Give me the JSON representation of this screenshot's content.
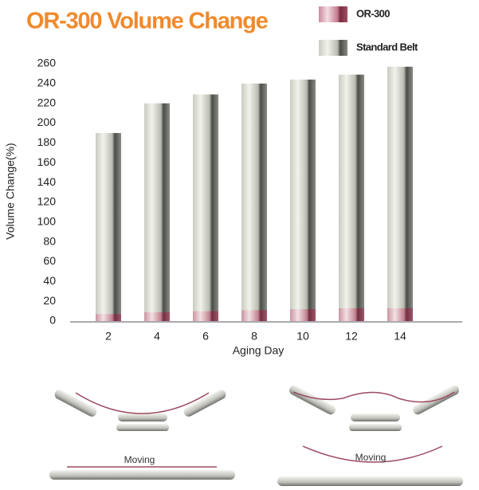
{
  "chart_data": {
    "type": "bar",
    "title": "OR-300 Volume Change",
    "x_label": "Aging Day",
    "y_label": "Volume Change(%)",
    "categories": [
      "2",
      "4",
      "6",
      "8",
      "10",
      "12",
      "14"
    ],
    "series": [
      {
        "name": "OR-300",
        "color": "#c27a8c",
        "values": [
          7,
          9,
          10,
          11,
          12,
          13,
          13
        ]
      },
      {
        "name": "Standard Belt",
        "color": "#c9cbc0",
        "values": [
          190,
          220,
          229,
          240,
          244,
          249,
          257
        ]
      }
    ],
    "ylim": [
      0,
      260
    ],
    "yticks": [
      0,
      20,
      40,
      60,
      80,
      100,
      120,
      140,
      160,
      180,
      200,
      220,
      240,
      260
    ],
    "legend": "top-right"
  },
  "annotations": [
    "Moving",
    "Moving"
  ]
}
